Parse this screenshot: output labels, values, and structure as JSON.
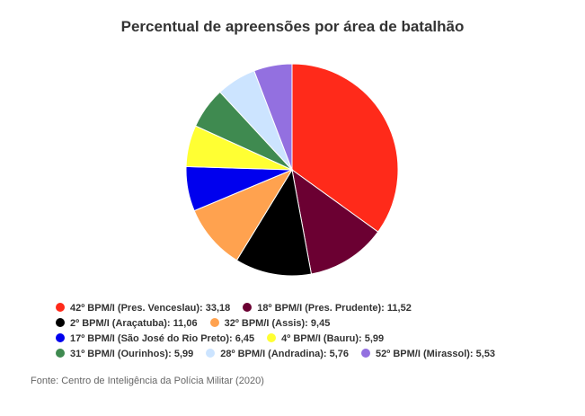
{
  "chart_data": {
    "type": "pie",
    "title": "Percentual de apreensões por área de batalhão",
    "slices": [
      {
        "label": "42º BPM/I (Pres. Venceslau): 33,18",
        "value": 33.18,
        "color": "#ff2a1a"
      },
      {
        "label": "18º BPM/I (Pres. Prudente): 11,52",
        "value": 11.52,
        "color": "#6b0032"
      },
      {
        "label": "2º BPM/I (Araçatuba): 11,06",
        "value": 11.06,
        "color": "#000000"
      },
      {
        "label": "32º BPM/I (Assis): 9,45",
        "value": 9.45,
        "color": "#ffa24f"
      },
      {
        "label": "17º BPM/I (São José do Rio Preto): 6,45",
        "value": 6.45,
        "color": "#0000ee"
      },
      {
        "label": "4º BPM/I (Bauru): 5,99",
        "value": 5.99,
        "color": "#ffff33"
      },
      {
        "label": "31º BPM/I (Ourinhos): 5,99",
        "value": 5.99,
        "color": "#3f8a50"
      },
      {
        "label": "28º BPM/I (Andradina): 5,76",
        "value": 5.76,
        "color": "#cce4ff"
      },
      {
        "label": "52º BPM/I (Mirassol): 5,53",
        "value": 5.53,
        "color": "#9370e0"
      }
    ],
    "legend_rows": [
      [
        0,
        1
      ],
      [
        2,
        3
      ],
      [
        4,
        5
      ],
      [
        6,
        7,
        8
      ]
    ],
    "legend_position": "bottom-left"
  },
  "source": "Fonte: Centro de Inteligência da Polícia Militar (2020)"
}
